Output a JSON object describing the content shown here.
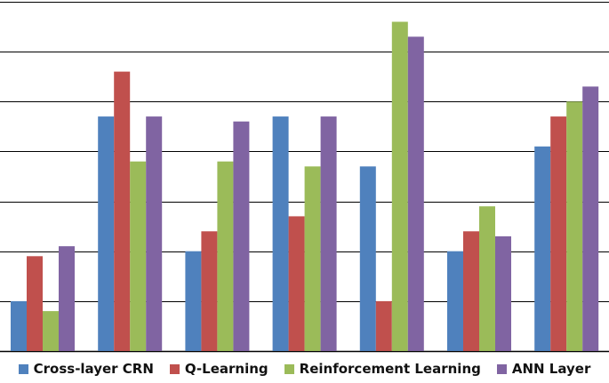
{
  "chart_data": {
    "type": "bar",
    "title": "",
    "xlabel": "",
    "ylabel": "",
    "ylim": [
      0,
      7
    ],
    "grid": true,
    "legend_position": "bottom",
    "categories": [
      "",
      "",
      "",
      "",
      "",
      "",
      ""
    ],
    "series": [
      {
        "name": "Cross-layer CRN",
        "color": "#4F81BD",
        "values": [
          1.0,
          4.7,
          2.0,
          4.7,
          3.7,
          2.0,
          4.1
        ]
      },
      {
        "name": "Q-Learning",
        "color": "#C0504D",
        "values": [
          1.9,
          5.6,
          2.4,
          2.7,
          1.0,
          2.4,
          4.7
        ]
      },
      {
        "name": "Reinforcement Learning",
        "color": "#9BBB59",
        "values": [
          0.8,
          3.8,
          3.8,
          3.7,
          6.6,
          2.9,
          5.0
        ]
      },
      {
        "name": "ANN Layer",
        "color": "#8064A2",
        "values": [
          2.1,
          4.7,
          4.6,
          4.7,
          6.3,
          2.3,
          5.3
        ]
      }
    ]
  }
}
